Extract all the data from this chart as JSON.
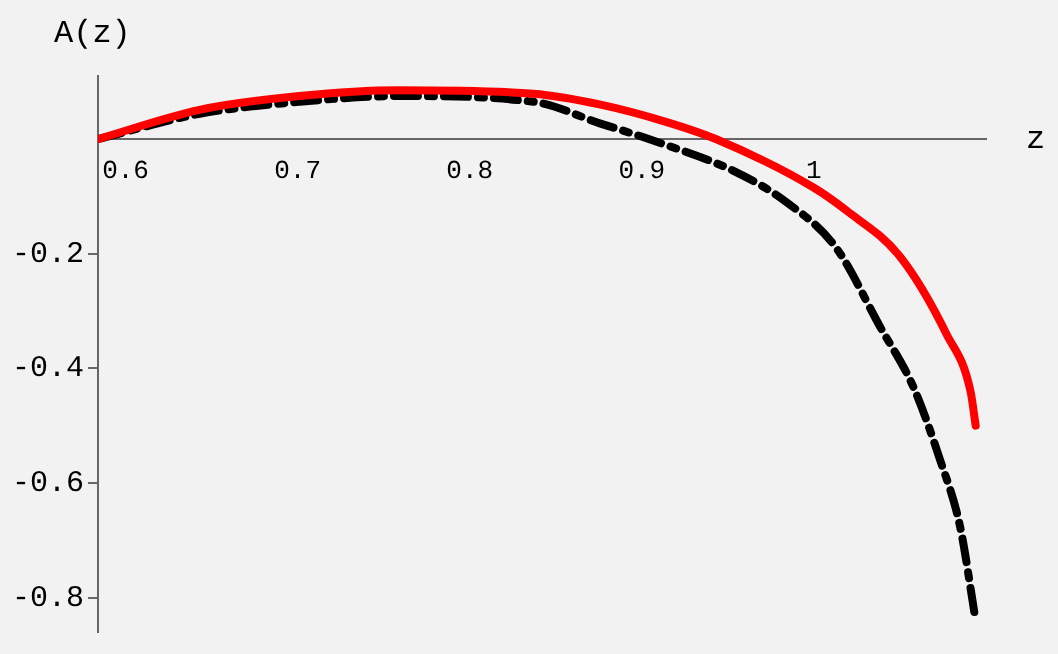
{
  "chart_data": {
    "type": "line",
    "xlabel": "z",
    "ylabel": "A(z)",
    "xlim": [
      0.584,
      1.1
    ],
    "ylim": [
      -0.86,
      0.11
    ],
    "xticks": [
      0.6,
      0.7,
      0.8,
      0.9,
      1
    ],
    "yticks": [
      -0.8,
      -0.6,
      -0.4,
      -0.2
    ],
    "grid": false,
    "legend": false,
    "marker": "none",
    "series": [
      {
        "color": "#ff0000",
        "line_style": "solid",
        "x": [
          0.584,
          0.643,
          0.701,
          0.759,
          0.837,
          0.876,
          0.914,
          0.943,
          1.0,
          1.019,
          1.05,
          1.077,
          1.091,
          1.094
        ],
        "values": [
          0,
          0.051,
          0.075,
          0.085,
          0.079,
          0.06,
          0.03,
          0,
          -0.085,
          -0.125,
          -0.205,
          -0.34,
          -0.44,
          -0.5
        ]
      },
      {
        "color": "#000000",
        "line_style": "dashed",
        "x": [
          0.584,
          0.643,
          0.701,
          0.759,
          0.837,
          0.876,
          0.904,
          0.955,
          0.984,
          1.013,
          1.038,
          1.058,
          1.073,
          1.085,
          1.094
        ],
        "values": [
          0,
          0.044,
          0.065,
          0.075,
          0.065,
          0.027,
          0,
          -0.058,
          -0.11,
          -0.19,
          -0.325,
          -0.434,
          -0.557,
          -0.677,
          -0.84
        ]
      }
    ]
  }
}
